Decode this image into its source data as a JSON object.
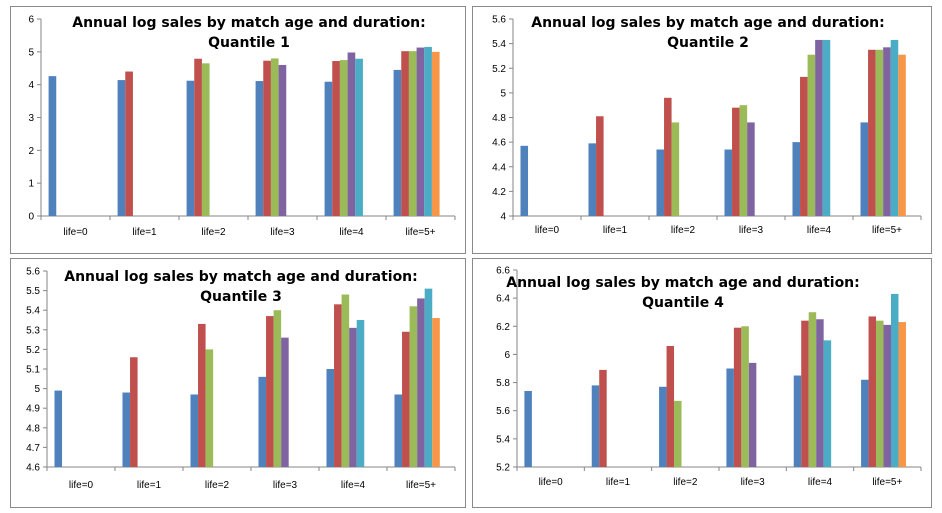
{
  "colors": [
    "#4F81BD",
    "#C0504D",
    "#9BBB59",
    "#8064A2",
    "#4BACC6",
    "#F79646"
  ],
  "chart_data": [
    {
      "type": "bar",
      "title": "Annual log sales by match age and duration:",
      "subtitle": "",
      "title_line2": "Quantile 1",
      "categories": [
        "life=0",
        "life=1",
        "life=2",
        "life=3",
        "life=4",
        "life=5+"
      ],
      "ylim": [
        0,
        6
      ],
      "yticks": [
        "0",
        "1",
        "2",
        "3",
        "4",
        "5",
        "6"
      ],
      "grid": false,
      "groups": [
        [
          4.26
        ],
        [
          4.14,
          4.4
        ],
        [
          4.12,
          4.79,
          4.65
        ],
        [
          4.11,
          4.73,
          4.8,
          4.6
        ],
        [
          4.09,
          4.72,
          4.75,
          4.98,
          4.79
        ],
        [
          4.45,
          5.02,
          5.02,
          5.13,
          5.15,
          5.0
        ]
      ]
    },
    {
      "type": "bar",
      "title": "Annual log sales by match age and duration:",
      "title_line2": "Quantile 2",
      "categories": [
        "life=0",
        "life=1",
        "life=2",
        "life=3",
        "life=4",
        "life=5+"
      ],
      "ylim": [
        4,
        5.6
      ],
      "yticks": [
        "4",
        "4.2",
        "4.4",
        "4.6",
        "4.8",
        "5",
        "5.2",
        "5.4",
        "5.6"
      ],
      "grid": false,
      "groups": [
        [
          4.57
        ],
        [
          4.59,
          4.81
        ],
        [
          4.54,
          4.96,
          4.76
        ],
        [
          4.54,
          4.88,
          4.9,
          4.76
        ],
        [
          4.6,
          5.13,
          5.31,
          5.43,
          5.43
        ],
        [
          4.76,
          5.35,
          5.35,
          5.37,
          5.43,
          5.31
        ]
      ]
    },
    {
      "type": "bar",
      "title": "Annual log sales by match age and duration:",
      "title_line2": "Quantile 3",
      "categories": [
        "life=0",
        "life=1",
        "life=2",
        "life=3",
        "life=4",
        "life=5+"
      ],
      "ylim": [
        4.6,
        5.6
      ],
      "yticks": [
        "4.6",
        "4.7",
        "4.8",
        "4.9",
        "5",
        "5.1",
        "5.2",
        "5.3",
        "5.4",
        "5.5",
        "5.6"
      ],
      "grid": false,
      "groups": [
        [
          4.99
        ],
        [
          4.98,
          5.16
        ],
        [
          4.97,
          5.33,
          5.2
        ],
        [
          5.06,
          5.37,
          5.4,
          5.26
        ],
        [
          5.1,
          5.43,
          5.48,
          5.31,
          5.35
        ],
        [
          4.97,
          5.29,
          5.42,
          5.46,
          5.51,
          5.36
        ]
      ]
    },
    {
      "type": "bar",
      "title": "Annual log sales by match age and duration:",
      "title_line2": "Quantile 4",
      "categories": [
        "life=0",
        "life=1",
        "life=2",
        "life=3",
        "life=4",
        "life=5+"
      ],
      "ylim": [
        5.2,
        6.6
      ],
      "yticks": [
        "5.2",
        "5.4",
        "5.6",
        "5.8",
        "6",
        "6.2",
        "6.4",
        "6.6"
      ],
      "grid": false,
      "groups": [
        [
          5.74
        ],
        [
          5.78,
          5.89
        ],
        [
          5.77,
          6.06,
          5.67
        ],
        [
          5.9,
          6.19,
          6.2,
          5.94
        ],
        [
          5.85,
          6.24,
          6.3,
          6.25,
          6.1
        ],
        [
          5.82,
          6.27,
          6.24,
          6.21,
          6.43,
          6.23
        ]
      ]
    }
  ]
}
